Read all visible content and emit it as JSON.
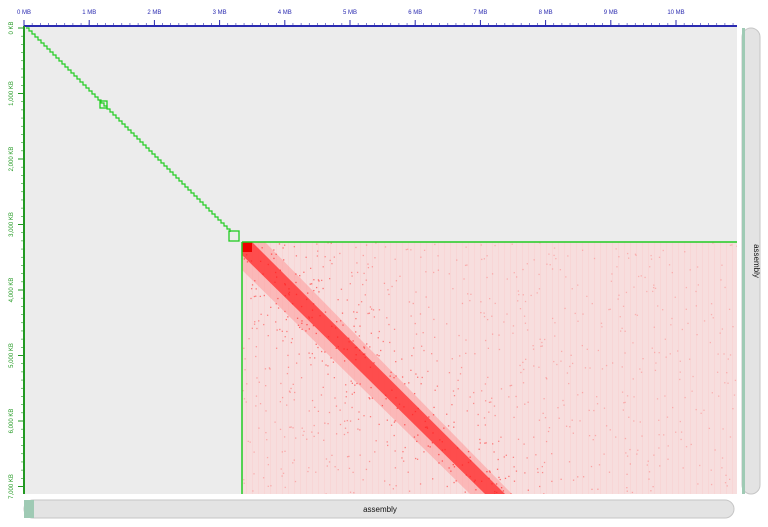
{
  "x_axis": {
    "unit_labels": [
      "0 MB",
      "1 MB",
      "2 MB",
      "3 MB",
      "4 MB",
      "5 MB",
      "6 MB",
      "7 MB",
      "8 MB",
      "9 MB",
      "10 MB"
    ],
    "color": "#2a2ab0"
  },
  "y_axis": {
    "unit_labels": [
      "0 KB",
      "1,000 KB",
      "2,000 KB",
      "3,000 KB",
      "4,000 KB",
      "5,000 KB",
      "6,000 KB",
      "7,000 KB"
    ],
    "color": "#229922"
  },
  "tracks": {
    "bottom_label": "assembly",
    "right_label": "assembly"
  },
  "colors": {
    "map_background": "#ececec",
    "contact_color": "#ff1a1a",
    "highlight_color": "#22cc22",
    "track_fill": "#e3e3e3"
  },
  "view": {
    "x_range_mb": [
      0,
      10.85
    ],
    "y_range_kb": [
      0,
      7270
    ],
    "selected_region": {
      "x_start_mb": 3.3,
      "y_start_kb": 3330
    }
  }
}
